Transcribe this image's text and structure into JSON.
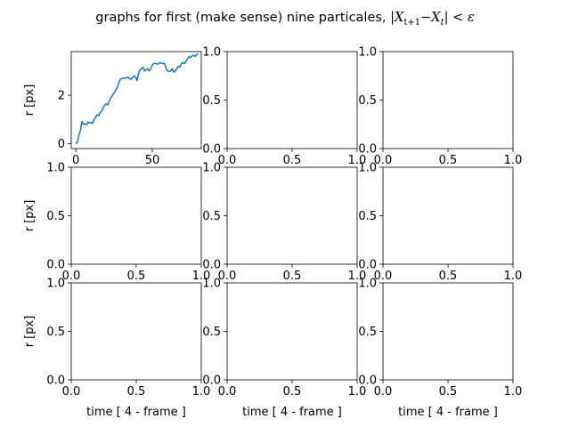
{
  "figure": {
    "title_text": "graphs for first (make sense) nine particales, ",
    "title_math": {
      "open_bar": "|",
      "X1": "X",
      "sub1": "t+1",
      "minus": "−",
      "X2": "X",
      "sub2": "t",
      "close_bar": "|",
      "lt": " < ",
      "eps": "ε"
    }
  },
  "chart_data": [
    {
      "type": "line",
      "ylabel": "r [px]",
      "xlabel": "",
      "xlim": [
        -3,
        82
      ],
      "ylim": [
        -0.2,
        3.8
      ],
      "xticks": [
        0,
        50
      ],
      "yticks": [
        0,
        2
      ],
      "series": [
        {
          "color": "#1f77b4",
          "x": [
            0,
            1,
            2,
            3,
            4,
            5,
            6,
            7,
            8,
            9,
            10,
            11,
            12,
            13,
            14,
            15,
            16,
            17,
            18,
            19,
            20,
            21,
            22,
            23,
            24,
            25,
            26,
            27,
            28,
            29,
            30,
            31,
            32,
            33,
            34,
            35,
            36,
            37,
            38,
            39,
            40,
            41,
            42,
            43,
            44,
            45,
            46,
            47,
            48,
            49,
            50,
            51,
            52,
            53,
            54,
            55,
            56,
            57,
            58,
            59,
            60,
            61,
            62,
            63,
            64,
            65,
            66,
            67,
            68,
            69,
            70,
            71,
            72,
            73,
            74,
            75,
            76,
            77,
            78,
            79,
            80
          ],
          "y": [
            0,
            0.05,
            0.35,
            0.55,
            0.92,
            0.8,
            0.82,
            0.78,
            0.9,
            0.85,
            0.88,
            0.84,
            1.0,
            1.1,
            1.2,
            1.15,
            1.3,
            1.35,
            1.5,
            1.6,
            1.65,
            1.6,
            1.8,
            1.9,
            2.0,
            2.1,
            2.2,
            2.3,
            2.5,
            2.65,
            2.7,
            2.68,
            2.72,
            2.7,
            2.75,
            2.7,
            2.65,
            2.72,
            2.8,
            2.75,
            2.6,
            2.9,
            3.05,
            3.1,
            3.15,
            3.0,
            3.05,
            3.1,
            3.0,
            3.1,
            3.25,
            3.3,
            3.32,
            3.28,
            3.3,
            3.35,
            3.32,
            3.3,
            3.32,
            3.1,
            3.0,
            2.98,
            3.0,
            3.1,
            2.95,
            3.0,
            3.1,
            3.2,
            3.15,
            3.3,
            3.35,
            3.3,
            3.4,
            3.5,
            3.6,
            3.55,
            3.62,
            3.65,
            3.6,
            3.68,
            3.7
          ]
        }
      ]
    },
    {
      "type": "line",
      "ylabel": "",
      "xlabel": "",
      "xlim": [
        0,
        1
      ],
      "ylim": [
        0,
        1
      ],
      "xticks": [
        "0.0",
        "0.5",
        "1.0"
      ],
      "yticks": [
        "0.0",
        "0.5",
        "1.0"
      ],
      "series": []
    },
    {
      "type": "line",
      "ylabel": "",
      "xlabel": "",
      "xlim": [
        0,
        1
      ],
      "ylim": [
        0,
        1
      ],
      "xticks": [
        "0.0",
        "0.5",
        "1.0"
      ],
      "yticks": [
        "0.0",
        "0.5",
        "1.0"
      ],
      "series": []
    },
    {
      "type": "line",
      "ylabel": "r [px]",
      "xlabel": "",
      "xlim": [
        0,
        1
      ],
      "ylim": [
        0,
        1
      ],
      "xticks": [
        "0.0",
        "0.5",
        "1.0"
      ],
      "yticks": [
        "0.0",
        "0.5",
        "1.0"
      ],
      "series": []
    },
    {
      "type": "line",
      "ylabel": "",
      "xlabel": "",
      "xlim": [
        0,
        1
      ],
      "ylim": [
        0,
        1
      ],
      "xticks": [
        "0.0",
        "0.5",
        "1.0"
      ],
      "yticks": [
        "0.0",
        "0.5",
        "1.0"
      ],
      "series": []
    },
    {
      "type": "line",
      "ylabel": "",
      "xlabel": "",
      "xlim": [
        0,
        1
      ],
      "ylim": [
        0,
        1
      ],
      "xticks": [
        "0.0",
        "0.5",
        "1.0"
      ],
      "yticks": [
        "0.0",
        "0.5",
        "1.0"
      ],
      "series": []
    },
    {
      "type": "line",
      "ylabel": "r [px]",
      "xlabel": "time [ 4 - frame ]",
      "xlim": [
        0,
        1
      ],
      "ylim": [
        0,
        1
      ],
      "xticks": [
        "0.0",
        "0.5",
        "1.0"
      ],
      "yticks": [
        "0.0",
        "0.5",
        "1.0"
      ],
      "series": []
    },
    {
      "type": "line",
      "ylabel": "",
      "xlabel": "time [ 4 - frame ]",
      "xlim": [
        0,
        1
      ],
      "ylim": [
        0,
        1
      ],
      "xticks": [
        "0.0",
        "0.5",
        "1.0"
      ],
      "yticks": [
        "0.0",
        "0.5",
        "1.0"
      ],
      "series": []
    },
    {
      "type": "line",
      "ylabel": "",
      "xlabel": "time [ 4 - frame ]",
      "xlim": [
        0,
        1
      ],
      "ylim": [
        0,
        1
      ],
      "xticks": [
        "0.0",
        "0.5",
        "1.0"
      ],
      "yticks": [
        "0.0",
        "0.5",
        "1.0"
      ],
      "series": []
    }
  ]
}
